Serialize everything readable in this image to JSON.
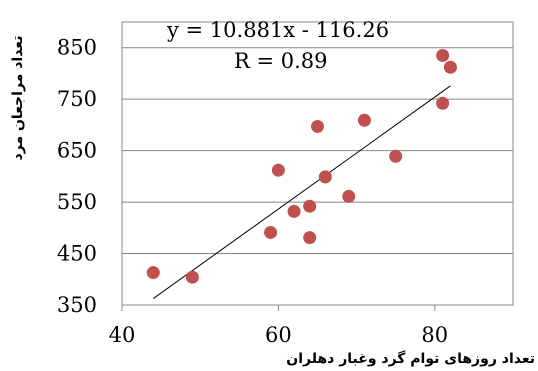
{
  "chart_data": {
    "type": "scatter",
    "xlabel": "تعداد روزهای توام گرد وغبار دهلران",
    "ylabel": "تعداد مراجعان مرد",
    "xlim": [
      40,
      90
    ],
    "ylim": [
      350,
      900
    ],
    "x_ticks": [
      "40",
      "60",
      "80"
    ],
    "y_ticks": [
      "350",
      "450",
      "550",
      "650",
      "750",
      "850"
    ],
    "grid": "horizontal",
    "legend": "none",
    "marker_color": "#c0504d",
    "series": [
      {
        "x": [
          44,
          49,
          59,
          60,
          62,
          64,
          64,
          65,
          66,
          69,
          71,
          75,
          81,
          81,
          82
        ],
        "y": [
          413,
          404,
          491,
          612,
          532,
          481,
          542,
          697,
          599,
          561,
          709,
          639,
          742,
          835,
          812
        ]
      }
    ],
    "trendline": {
      "equation": "y = 10.881x - 116.26",
      "r_label": "R = 0.89",
      "slope": 10.881,
      "intercept": -116.26,
      "x_range": [
        44,
        82
      ],
      "color": "#000000"
    }
  }
}
